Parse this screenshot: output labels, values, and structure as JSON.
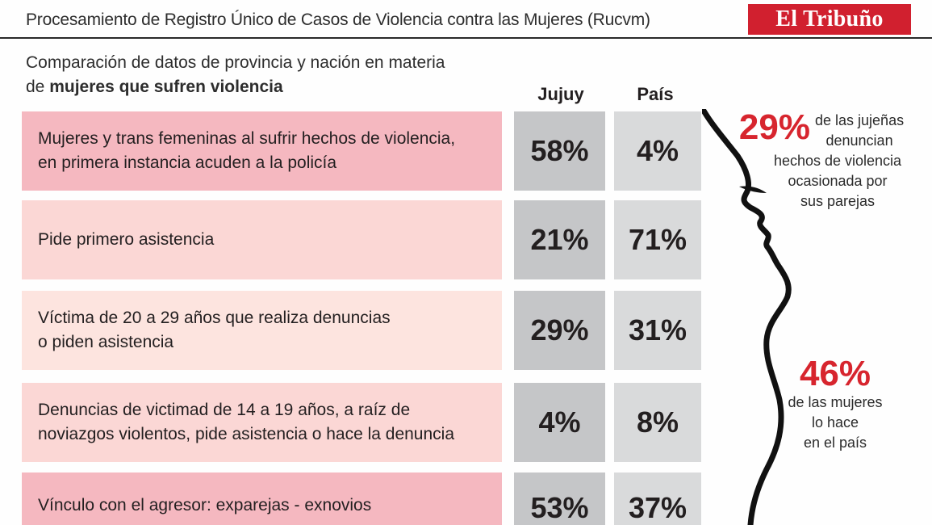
{
  "header": {
    "title": "Procesamiento de  Registro Único de Casos de Violencia contra las Mujeres (Rucvm)",
    "brand": "El Tribuño"
  },
  "subtitle": {
    "line1": "Comparación de datos de provincia y nación en materia",
    "line2_prefix": "de ",
    "line2_bold": "mujeres que sufren violencia"
  },
  "chart_data": {
    "type": "table",
    "title": "Comparación de datos de provincia y nación en materia de mujeres que sufren violencia",
    "columns": [
      "Jujuy",
      "País"
    ],
    "rows": [
      {
        "label_lines": [
          "Mujeres y trans femeninas al sufrir hechos de violencia,",
          "en primera instancia acuden a la policía"
        ],
        "jujuy": "58%",
        "pais": "4%",
        "jujuy_value": 58,
        "pais_value": 4
      },
      {
        "label_lines": [
          "Pide primero asistencia"
        ],
        "jujuy": "21%",
        "pais": "71%",
        "jujuy_value": 21,
        "pais_value": 71
      },
      {
        "label_lines": [
          "Víctima de 20 a 29 años que realiza denuncias",
          "o piden asistencia"
        ],
        "jujuy": "29%",
        "pais": "31%",
        "jujuy_value": 29,
        "pais_value": 31
      },
      {
        "label_lines": [
          "Denuncias de victimad de 14 a 19 años, a raíz de",
          "noviazgos violentos, pide asistencia o hace la denuncia"
        ],
        "jujuy": "4%",
        "pais": "8%",
        "jujuy_value": 4,
        "pais_value": 8
      },
      {
        "label_lines": [
          "Vínculo con el agresor: exparejas - exnovios"
        ],
        "jujuy": "53%",
        "pais": "37%",
        "jujuy_value": 53,
        "pais_value": 37
      }
    ]
  },
  "side": {
    "stat1": {
      "pct": "29%",
      "lines": [
        "de las jujeñas",
        "denuncian",
        "hechos de violencia",
        "ocasionada por",
        "sus parejas"
      ]
    },
    "stat2": {
      "pct": "46%",
      "lines": [
        "de las mujeres",
        "lo hace",
        "en el país"
      ]
    }
  },
  "colors": {
    "brand_red": "#d1202f",
    "accent_red": "#d7252e",
    "row_pink": "#f5b8c0",
    "row_light": "#fbd7d5",
    "row_peach": "#fde4df",
    "jujuy_cell": "#c5c6c8",
    "pais_cell": "#d9dadb"
  }
}
